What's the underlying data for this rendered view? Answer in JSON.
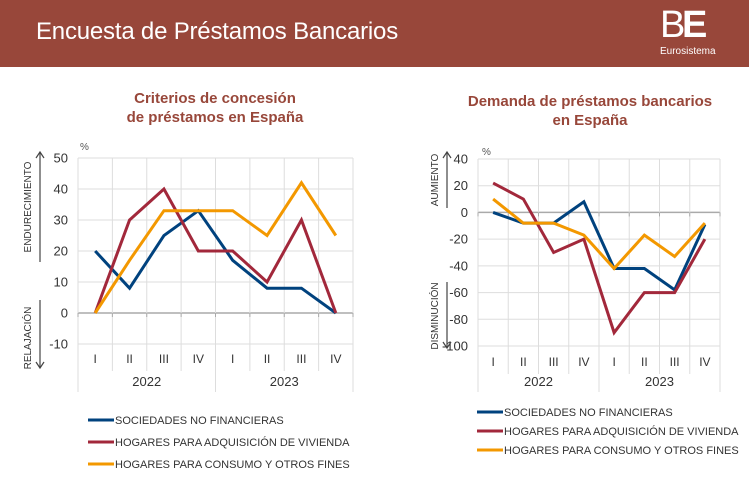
{
  "header": {
    "title": "Encuesta de Préstamos Bancarios",
    "logo_letters_left": "B",
    "logo_letters_right": "E",
    "logo_subtitle": "Eurosistema",
    "background_color": "#98473a"
  },
  "chart_data": [
    {
      "type": "line",
      "title": "Criterios de concesión de préstamos en España",
      "title_lines": [
        "Criterios de concesión",
        "de préstamos en España"
      ],
      "unit_label": "%",
      "ylabel_up": "ENDURECIMIENTO",
      "ylabel_down": "RELAJACIÓN",
      "ylim": [
        -10,
        50
      ],
      "yticks": [
        50,
        40,
        30,
        20,
        10,
        0,
        -10
      ],
      "categories": [
        "I",
        "II",
        "III",
        "IV",
        "I",
        "II",
        "III",
        "IV"
      ],
      "years": [
        "2022",
        "2023"
      ],
      "grid": true,
      "legend_position": "bottom",
      "series": [
        {
          "name": "SOCIEDADES NO FINANCIERAS",
          "color": "#00427e",
          "values": [
            20,
            8,
            25,
            33,
            17,
            8,
            8,
            0
          ]
        },
        {
          "name": "HOGARES PARA ADQUISICIÓN DE VIVIENDA",
          "color": "#a2283b",
          "values": [
            0,
            30,
            40,
            20,
            20,
            10,
            30,
            0
          ]
        },
        {
          "name": "HOGARES PARA CONSUMO Y OTROS FINES",
          "color": "#f39800",
          "values": [
            0,
            17,
            33,
            33,
            33,
            25,
            42,
            25
          ]
        }
      ]
    },
    {
      "type": "line",
      "title": "Demanda de préstamos bancarios en España",
      "title_lines": [
        "Demanda de préstamos bancarios",
        "en España"
      ],
      "unit_label": "%",
      "ylabel_up": "AUMIENTO",
      "ylabel_down": "DISMINUCIÓN",
      "ylim": [
        -100,
        40
      ],
      "yticks": [
        40,
        20,
        0,
        -20,
        -40,
        -60,
        -80,
        -100
      ],
      "categories": [
        "I",
        "II",
        "III",
        "IV",
        "I",
        "II",
        "III",
        "IV"
      ],
      "years": [
        "2022",
        "2023"
      ],
      "grid": true,
      "legend_position": "bottom",
      "series": [
        {
          "name": "SOCIEDADES NO FINANCIERAS",
          "color": "#00427e",
          "values": [
            0,
            -8,
            -8,
            8,
            -42,
            -42,
            -58,
            -9
          ]
        },
        {
          "name": "HOGARES PARA ADQUISICIÓN DE VIVIENDA",
          "color": "#a2283b",
          "values": [
            22,
            10,
            -30,
            -20,
            -90,
            -60,
            -60,
            -20
          ]
        },
        {
          "name": "HOGARES PARA CONSUMO Y OTROS FINES",
          "color": "#f39800",
          "values": [
            10,
            -8,
            -8,
            -17,
            -42,
            -17,
            -33,
            -8
          ]
        }
      ]
    }
  ]
}
